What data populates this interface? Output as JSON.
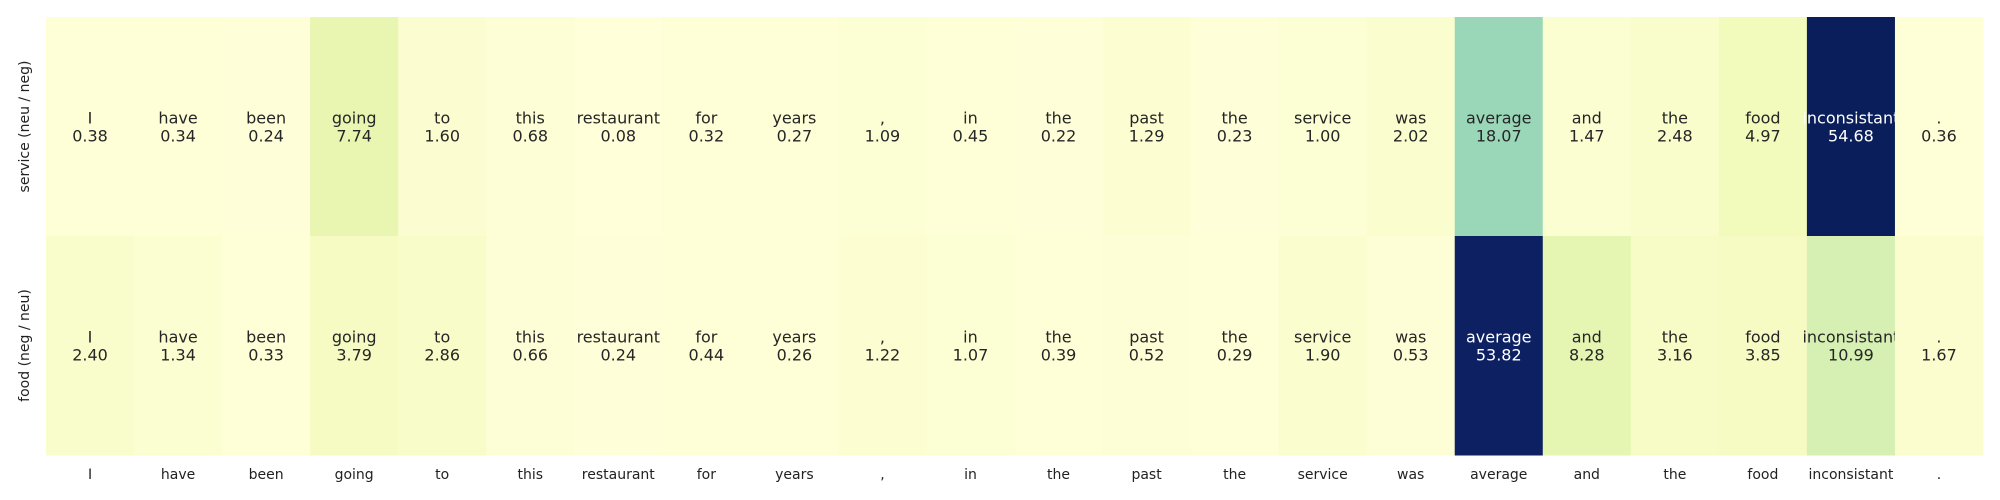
{
  "chart_data": {
    "type": "heatmap",
    "rows": [
      "service (neu / neg)",
      "food (neg / neu)"
    ],
    "columns": [
      "I",
      "have",
      "been",
      "going",
      "to",
      "this",
      "restaurant",
      "for",
      "years",
      ",",
      "in",
      "the",
      "past",
      "the",
      "service",
      "was",
      "average",
      "and",
      "the",
      "food",
      "inconsistant",
      "."
    ],
    "values": [
      [
        0.38,
        0.34,
        0.24,
        7.74,
        1.6,
        0.68,
        0.08,
        0.32,
        0.27,
        1.09,
        0.45,
        0.22,
        1.29,
        0.23,
        1.0,
        2.02,
        18.07,
        1.47,
        2.48,
        4.97,
        54.68,
        0.36
      ],
      [
        2.4,
        1.34,
        0.33,
        3.79,
        2.86,
        0.66,
        0.24,
        0.44,
        0.26,
        1.22,
        1.07,
        0.39,
        0.52,
        0.29,
        1.9,
        0.53,
        53.82,
        8.28,
        3.16,
        3.85,
        10.99,
        1.67
      ]
    ],
    "colormap": "YlGnBu",
    "vmin": 0,
    "vmax": 55,
    "annotations": "token and value shown in each cell",
    "colorbar": false,
    "grid": false
  }
}
